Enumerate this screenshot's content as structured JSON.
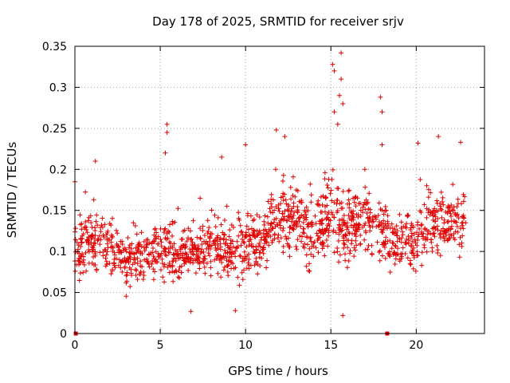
{
  "chart_data": {
    "type": "scatter",
    "title": "Day 178 of 2025, SRMTID for receiver srjv",
    "xlabel": "GPS time / hours",
    "ylabel": "SRMTID / TECUs",
    "xlim": [
      0,
      24
    ],
    "ylim": [
      0,
      0.35
    ],
    "grid": true,
    "marker": "+",
    "color": "#e00000",
    "x_ticks": [
      {
        "value": 0,
        "label": "0"
      },
      {
        "value": 5,
        "label": "5"
      },
      {
        "value": 10,
        "label": "10"
      },
      {
        "value": 15,
        "label": "15"
      },
      {
        "value": 20,
        "label": "20"
      }
    ],
    "y_ticks": [
      {
        "value": 0,
        "label": "0"
      },
      {
        "value": 0.05,
        "label": "0.05"
      },
      {
        "value": 0.1,
        "label": "0.1"
      },
      {
        "value": 0.15,
        "label": "0.15"
      },
      {
        "value": 0.2,
        "label": "0.2"
      },
      {
        "value": 0.25,
        "label": "0.25"
      },
      {
        "value": 0.3,
        "label": "0.3"
      },
      {
        "value": 0.35,
        "label": "0.35"
      }
    ],
    "x_range_hours": [
      0,
      22.9
    ],
    "band_profile": [
      [
        0.0,
        0.06,
        0.14
      ],
      [
        1.0,
        0.07,
        0.15
      ],
      [
        2.0,
        0.07,
        0.14
      ],
      [
        3.0,
        0.05,
        0.12
      ],
      [
        4.0,
        0.06,
        0.13
      ],
      [
        5.0,
        0.06,
        0.14
      ],
      [
        6.0,
        0.06,
        0.13
      ],
      [
        7.0,
        0.07,
        0.13
      ],
      [
        8.0,
        0.07,
        0.14
      ],
      [
        9.0,
        0.06,
        0.14
      ],
      [
        10.0,
        0.07,
        0.15
      ],
      [
        11.0,
        0.08,
        0.15
      ],
      [
        12.0,
        0.1,
        0.19
      ],
      [
        13.0,
        0.09,
        0.18
      ],
      [
        14.0,
        0.08,
        0.17
      ],
      [
        15.0,
        0.09,
        0.2
      ],
      [
        16.0,
        0.08,
        0.18
      ],
      [
        17.0,
        0.1,
        0.18
      ],
      [
        18.0,
        0.08,
        0.16
      ],
      [
        19.0,
        0.07,
        0.14
      ],
      [
        20.0,
        0.08,
        0.16
      ],
      [
        21.0,
        0.09,
        0.18
      ],
      [
        22.0,
        0.1,
        0.17
      ],
      [
        22.9,
        0.09,
        0.16
      ]
    ],
    "outliers": [
      {
        "x": 0.0,
        "y": 0.185
      },
      {
        "x": 1.2,
        "y": 0.21
      },
      {
        "x": 5.4,
        "y": 0.255
      },
      {
        "x": 5.4,
        "y": 0.245
      },
      {
        "x": 5.3,
        "y": 0.22
      },
      {
        "x": 6.8,
        "y": 0.027
      },
      {
        "x": 8.6,
        "y": 0.215
      },
      {
        "x": 9.4,
        "y": 0.028
      },
      {
        "x": 10.0,
        "y": 0.23
      },
      {
        "x": 11.8,
        "y": 0.248
      },
      {
        "x": 12.3,
        "y": 0.24
      },
      {
        "x": 15.1,
        "y": 0.328
      },
      {
        "x": 15.2,
        "y": 0.32
      },
      {
        "x": 15.6,
        "y": 0.342
      },
      {
        "x": 15.6,
        "y": 0.31
      },
      {
        "x": 15.5,
        "y": 0.29
      },
      {
        "x": 15.7,
        "y": 0.28
      },
      {
        "x": 15.2,
        "y": 0.27
      },
      {
        "x": 15.4,
        "y": 0.255
      },
      {
        "x": 15.7,
        "y": 0.022
      },
      {
        "x": 17.9,
        "y": 0.288
      },
      {
        "x": 18.0,
        "y": 0.27
      },
      {
        "x": 18.0,
        "y": 0.23
      },
      {
        "x": 20.1,
        "y": 0.232
      },
      {
        "x": 21.3,
        "y": 0.24
      },
      {
        "x": 22.6,
        "y": 0.233
      }
    ],
    "zero_markers": [
      {
        "x": 0.05,
        "y": 0
      },
      {
        "x": 18.3,
        "y": 0
      }
    ]
  }
}
